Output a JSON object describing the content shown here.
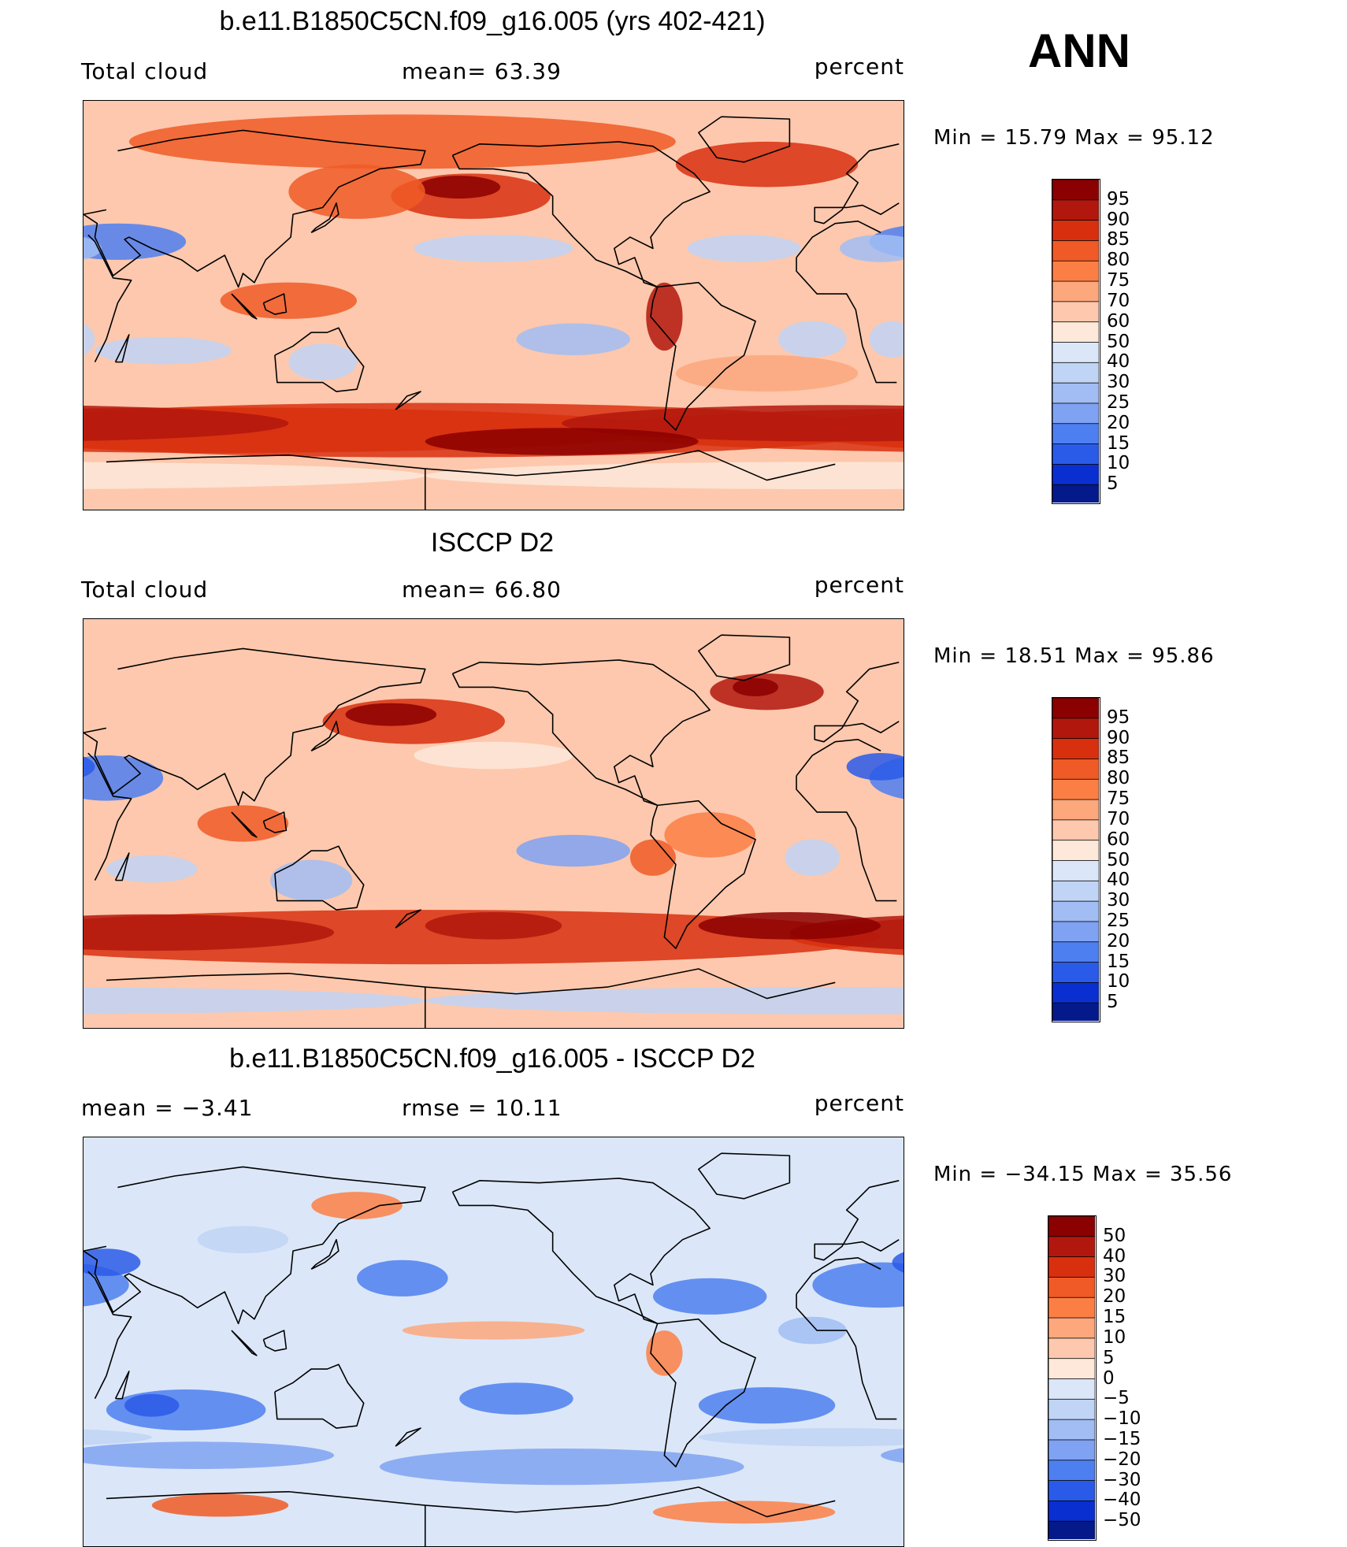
{
  "season": "ANN",
  "panels": [
    {
      "id": "model",
      "title": "b.e11.B1850C5CN.f09_g16.005 (yrs 402-421)",
      "left_label": "Total cloud",
      "center_label": "mean=   63.39",
      "units": "percent",
      "minmax": "Min  =   15.79  Max  =   95.12",
      "colorbar": {
        "levels": [
          "95",
          "90",
          "85",
          "80",
          "75",
          "70",
          "60",
          "50",
          "40",
          "30",
          "25",
          "20",
          "15",
          "10",
          "5"
        ],
        "colors": [
          "#8b0000",
          "#b2170d",
          "#d8300f",
          "#f05a26",
          "#fb7f45",
          "#fca77c",
          "#fdc8ad",
          "#fde8d9",
          "#dbe7f8",
          "#c0d4f5",
          "#a1bdf3",
          "#7fa2f2",
          "#4e7ff0",
          "#2a5be8",
          "#0a2fd0",
          "#041a8a"
        ]
      },
      "field": "model"
    },
    {
      "id": "obs",
      "title": "ISCCP D2",
      "left_label": "Total cloud",
      "center_label": "mean=   66.80",
      "units": "percent",
      "minmax": "Min  =   18.51  Max  =   95.86",
      "colorbar": {
        "levels": [
          "95",
          "90",
          "85",
          "80",
          "75",
          "70",
          "60",
          "50",
          "40",
          "30",
          "25",
          "20",
          "15",
          "10",
          "5"
        ],
        "colors": [
          "#8b0000",
          "#b2170d",
          "#d8300f",
          "#f05a26",
          "#fb7f45",
          "#fca77c",
          "#fdc8ad",
          "#fde8d9",
          "#dbe7f8",
          "#c0d4f5",
          "#a1bdf3",
          "#7fa2f2",
          "#4e7ff0",
          "#2a5be8",
          "#0a2fd0",
          "#041a8a"
        ]
      },
      "field": "obs"
    },
    {
      "id": "diff",
      "title": "b.e11.B1850C5CN.f09_g16.005 - ISCCP D2",
      "left_label": "mean  =    −3.41",
      "center_label": "rmse  =    10.11",
      "units": "percent",
      "minmax": "Min  = −34.15  Max  =   35.56",
      "colorbar": {
        "levels": [
          "50",
          "40",
          "30",
          "20",
          "15",
          "10",
          "5",
          "0",
          "−5",
          "−10",
          "−15",
          "−20",
          "−30",
          "−40",
          "−50"
        ],
        "colors": [
          "#8b0000",
          "#b2170d",
          "#d8300f",
          "#f05a26",
          "#fb7f45",
          "#fca77c",
          "#fdc8ad",
          "#fde8d9",
          "#dbe7f8",
          "#c0d4f5",
          "#a1bdf3",
          "#7fa2f2",
          "#4e7ff0",
          "#2a5be8",
          "#0a2fd0",
          "#041a8a"
        ]
      },
      "field": "diff"
    }
  ],
  "chart_data": {
    "type": "heatmap",
    "variable": "Total cloud",
    "units": "percent",
    "panels": [
      {
        "title": "b.e11.B1850C5CN.f09_g16.005 (yrs 402-421)",
        "mean": 63.39,
        "min": 15.79,
        "max": 95.12,
        "contour_levels": [
          5,
          10,
          15,
          20,
          25,
          30,
          40,
          50,
          60,
          70,
          75,
          80,
          85,
          90,
          95
        ]
      },
      {
        "title": "ISCCP D2",
        "mean": 66.8,
        "min": 18.51,
        "max": 95.86,
        "contour_levels": [
          5,
          10,
          15,
          20,
          25,
          30,
          40,
          50,
          60,
          70,
          75,
          80,
          85,
          90,
          95
        ]
      },
      {
        "title": "b.e11.B1850C5CN.f09_g16.005 - ISCCP D2",
        "mean": -3.41,
        "rmse": 10.11,
        "min": -34.15,
        "max": 35.56,
        "contour_levels": [
          -50,
          -40,
          -30,
          -20,
          -15,
          -10,
          -5,
          0,
          5,
          10,
          15,
          20,
          30,
          40,
          50
        ]
      }
    ]
  }
}
